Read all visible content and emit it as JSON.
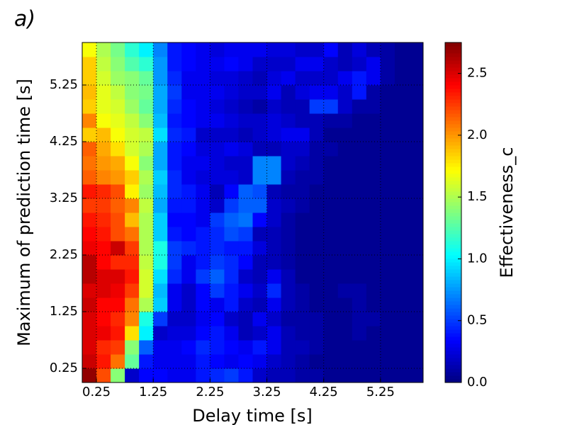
{
  "chart_data": {
    "type": "heatmap",
    "panel_label": "a)",
    "xlabel": "Delay time [s]",
    "ylabel": "Maximum of prediction time [s]",
    "colorbar_label": "Effectiveness_c",
    "colormap": "jet",
    "grid": true,
    "xlim": [
      0,
      6
    ],
    "ylim": [
      0,
      6
    ],
    "xticks": [
      0.25,
      1.25,
      2.25,
      3.25,
      4.25,
      5.25
    ],
    "yticks": [
      0.25,
      1.25,
      2.25,
      3.25,
      4.25,
      5.25
    ],
    "xbins": [
      0,
      0.25,
      0.5,
      0.75,
      1,
      1.25,
      1.5,
      1.75,
      2,
      2.25,
      2.5,
      2.75,
      3,
      3.25,
      3.5,
      3.75,
      4,
      4.25,
      4.5,
      4.75,
      5,
      5.25,
      5.5,
      5.75,
      6
    ],
    "ybins": [
      0,
      0.25,
      0.5,
      0.75,
      1,
      1.25,
      1.5,
      1.75,
      2,
      2.25,
      2.5,
      2.75,
      3,
      3.25,
      3.5,
      3.75,
      4,
      4.25,
      4.5,
      4.75,
      5,
      5.25,
      5.5,
      5.75,
      6
    ],
    "clim": [
      0,
      2.75
    ],
    "colorbar_ticks": [
      {
        "value": 0,
        "label": "0.0"
      },
      0.5,
      {
        "value": 1,
        "label": "1.0"
      },
      1.5,
      {
        "value": 2,
        "label": "2.0"
      },
      2.5
    ],
    "z": [
      [
        2.7,
        2.2,
        1.4,
        0.2,
        0.35,
        0.35,
        0.3,
        0.3,
        0.4,
        0.45,
        0.5,
        0.4,
        0.2,
        0.15,
        0.15,
        0.1,
        0.1,
        0.05,
        0.05,
        0.05,
        0.05,
        0.05,
        0.05,
        0.05
      ],
      [
        2.55,
        2.35,
        2.1,
        1.3,
        0.4,
        0.3,
        0.3,
        0.3,
        0.4,
        0.35,
        0.3,
        0.35,
        0.3,
        0.2,
        0.15,
        0.1,
        0.05,
        0.05,
        0.05,
        0.05,
        0.05,
        0.05,
        0.05,
        0.05
      ],
      [
        2.5,
        2.3,
        2.25,
        1.4,
        0.6,
        0.3,
        0.3,
        0.35,
        0.45,
        0.4,
        0.35,
        0.3,
        0.4,
        0.3,
        0.15,
        0.15,
        0.1,
        0.05,
        0.05,
        0.05,
        0.05,
        0.05,
        0.05,
        0.05
      ],
      [
        2.5,
        2.45,
        2.35,
        1.8,
        1.0,
        0.2,
        0.25,
        0.25,
        0.35,
        0.4,
        0.3,
        0.15,
        0.2,
        0.3,
        0.15,
        0.1,
        0.1,
        0.05,
        0.05,
        0.1,
        0.05,
        0.05,
        0.05,
        0.05
      ],
      [
        2.5,
        2.4,
        2.3,
        2.05,
        1.1,
        0.5,
        0.2,
        0.2,
        0.3,
        0.35,
        0.2,
        0.15,
        0.3,
        0.2,
        0.1,
        0.1,
        0.1,
        0.05,
        0.05,
        0.1,
        0.1,
        0.05,
        0.05,
        0.05
      ],
      [
        2.55,
        2.4,
        2.4,
        2.1,
        1.5,
        0.9,
        0.3,
        0.2,
        0.35,
        0.3,
        0.4,
        0.2,
        0.15,
        0.3,
        0.15,
        0.1,
        0.05,
        0.05,
        0.05,
        0.1,
        0.05,
        0.05,
        0.05,
        0.05
      ],
      [
        2.5,
        2.5,
        2.45,
        2.25,
        1.6,
        0.85,
        0.3,
        0.2,
        0.35,
        0.5,
        0.4,
        0.3,
        0.2,
        0.45,
        0.15,
        0.1,
        0.05,
        0.05,
        0.1,
        0.1,
        0.05,
        0.05,
        0.05,
        0.05
      ],
      [
        2.6,
        2.5,
        2.5,
        2.35,
        1.6,
        0.95,
        0.45,
        0.3,
        0.5,
        0.6,
        0.45,
        0.2,
        0.15,
        0.3,
        0.15,
        0.05,
        0.05,
        0.05,
        0.05,
        0.05,
        0.05,
        0.05,
        0.05,
        0.05
      ],
      [
        2.6,
        2.4,
        2.3,
        2.3,
        1.55,
        1.1,
        0.5,
        0.3,
        0.4,
        0.5,
        0.45,
        0.35,
        0.15,
        0.15,
        0.1,
        0.05,
        0.05,
        0.05,
        0.05,
        0.05,
        0.05,
        0.05,
        0.05,
        0.05
      ],
      [
        2.45,
        2.4,
        2.55,
        2.25,
        1.5,
        1.1,
        0.5,
        0.45,
        0.4,
        0.45,
        0.4,
        0.4,
        0.25,
        0.15,
        0.1,
        0.05,
        0.05,
        0.05,
        0.05,
        0.05,
        0.05,
        0.05,
        0.05,
        0.05
      ],
      [
        2.4,
        2.35,
        2.2,
        2.1,
        1.5,
        0.9,
        0.4,
        0.35,
        0.4,
        0.45,
        0.55,
        0.5,
        0.15,
        0.15,
        0.1,
        0.05,
        0.05,
        0.05,
        0.05,
        0.05,
        0.05,
        0.05,
        0.05,
        0.05
      ],
      [
        2.35,
        2.3,
        2.2,
        1.9,
        1.5,
        0.9,
        0.35,
        0.35,
        0.3,
        0.5,
        0.6,
        0.65,
        0.35,
        0.2,
        0.1,
        0.05,
        0.05,
        0.05,
        0.05,
        0.05,
        0.05,
        0.05,
        0.05,
        0.05
      ],
      [
        2.25,
        2.25,
        2.15,
        2.05,
        1.55,
        0.8,
        0.4,
        0.4,
        0.3,
        0.2,
        0.5,
        0.6,
        0.6,
        0.2,
        0.15,
        0.1,
        0.05,
        0.05,
        0.05,
        0.05,
        0.05,
        0.05,
        0.05,
        0.05
      ],
      [
        2.35,
        2.3,
        2.2,
        1.75,
        1.45,
        0.85,
        0.45,
        0.4,
        0.3,
        0.15,
        0.35,
        0.6,
        0.55,
        0.15,
        0.1,
        0.1,
        0.05,
        0.05,
        0.05,
        0.05,
        0.05,
        0.05,
        0.05,
        0.05
      ],
      [
        2.15,
        2.05,
        2.0,
        1.85,
        1.5,
        0.9,
        0.45,
        0.3,
        0.25,
        0.25,
        0.25,
        0.2,
        0.7,
        0.7,
        0.15,
        0.1,
        0.1,
        0.05,
        0.05,
        0.05,
        0.05,
        0.05,
        0.05,
        0.05
      ],
      [
        2.1,
        2.0,
        1.95,
        1.7,
        1.4,
        0.8,
        0.4,
        0.3,
        0.3,
        0.25,
        0.2,
        0.2,
        0.7,
        0.7,
        0.2,
        0.15,
        0.1,
        0.05,
        0.05,
        0.05,
        0.05,
        0.05,
        0.05,
        0.05
      ],
      [
        2.15,
        1.95,
        1.8,
        1.6,
        1.5,
        0.8,
        0.4,
        0.35,
        0.25,
        0.25,
        0.3,
        0.25,
        0.15,
        0.15,
        0.2,
        0.2,
        0.1,
        0.1,
        0.05,
        0.05,
        0.05,
        0.05,
        0.05,
        0.05
      ],
      [
        1.85,
        1.9,
        1.7,
        1.6,
        1.55,
        0.95,
        0.45,
        0.4,
        0.2,
        0.2,
        0.2,
        0.15,
        0.2,
        0.25,
        0.3,
        0.3,
        0.15,
        0.05,
        0.05,
        0.05,
        0.05,
        0.05,
        0.05,
        0.05
      ],
      [
        2.05,
        1.7,
        1.65,
        1.55,
        1.4,
        0.85,
        0.4,
        0.35,
        0.3,
        0.3,
        0.25,
        0.2,
        0.2,
        0.25,
        0.2,
        0.15,
        0.15,
        0.1,
        0.1,
        0.05,
        0.05,
        0.05,
        0.05,
        0.05
      ],
      [
        1.85,
        1.65,
        1.6,
        1.45,
        1.3,
        0.8,
        0.45,
        0.35,
        0.3,
        0.25,
        0.2,
        0.15,
        0.1,
        0.2,
        0.15,
        0.15,
        0.5,
        0.5,
        0.2,
        0.1,
        0.1,
        0.05,
        0.05,
        0.05
      ],
      [
        1.9,
        1.65,
        1.55,
        1.4,
        1.35,
        0.8,
        0.5,
        0.3,
        0.3,
        0.3,
        0.25,
        0.2,
        0.2,
        0.3,
        0.15,
        0.25,
        0.3,
        0.3,
        0.2,
        0.4,
        0.1,
        0.05,
        0.05,
        0.05
      ],
      [
        1.85,
        1.6,
        1.45,
        1.4,
        1.3,
        0.75,
        0.45,
        0.3,
        0.3,
        0.25,
        0.25,
        0.2,
        0.15,
        0.25,
        0.3,
        0.2,
        0.2,
        0.2,
        0.3,
        0.4,
        0.3,
        0.1,
        0.05,
        0.05
      ],
      [
        1.85,
        1.55,
        1.4,
        1.25,
        1.15,
        0.75,
        0.4,
        0.35,
        0.3,
        0.3,
        0.35,
        0.3,
        0.2,
        0.2,
        0.2,
        0.3,
        0.3,
        0.2,
        0.15,
        0.2,
        0.3,
        0.1,
        0.05,
        0.05
      ],
      [
        1.7,
        1.5,
        1.35,
        1.15,
        1.0,
        0.7,
        0.4,
        0.35,
        0.3,
        0.25,
        0.3,
        0.3,
        0.3,
        0.25,
        0.25,
        0.2,
        0.2,
        0.35,
        0.15,
        0.25,
        0.15,
        0.1,
        0.05,
        0.05
      ]
    ]
  }
}
